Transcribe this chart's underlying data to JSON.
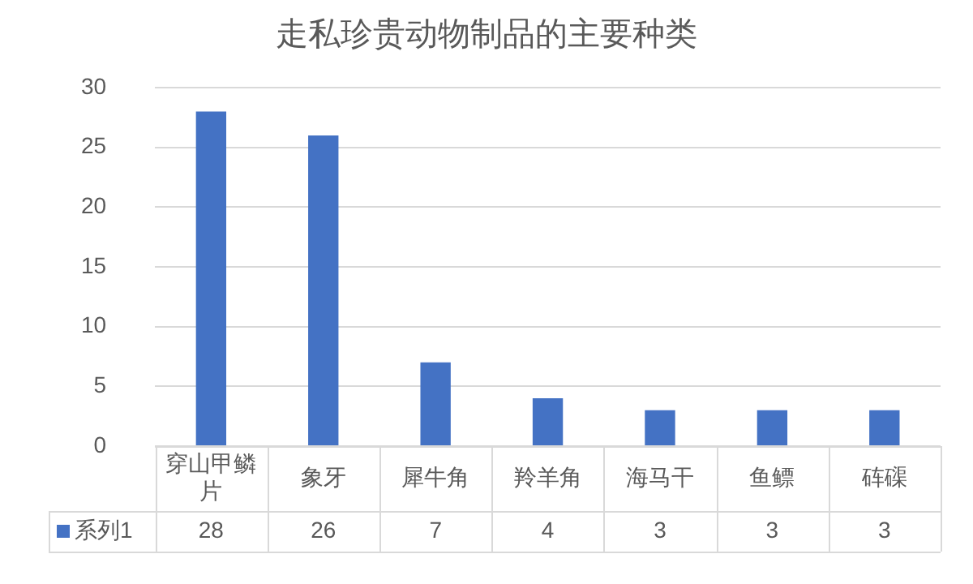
{
  "chart_data": {
    "type": "bar",
    "title": "走私珍贵动物制品的主要种类",
    "categories": [
      "穿山甲鳞片",
      "象牙",
      "犀牛角",
      "羚羊角",
      "海马干",
      "鱼鳔",
      "砗磲"
    ],
    "series": [
      {
        "name": "系列1",
        "color": "#4472c4",
        "values": [
          28,
          26,
          7,
          4,
          3,
          3,
          3
        ]
      }
    ],
    "ylim": [
      0,
      30
    ],
    "yticks": [
      0,
      5,
      10,
      15,
      20,
      25,
      30
    ],
    "grid": "y",
    "legend": "bottom",
    "data_labels": true
  }
}
